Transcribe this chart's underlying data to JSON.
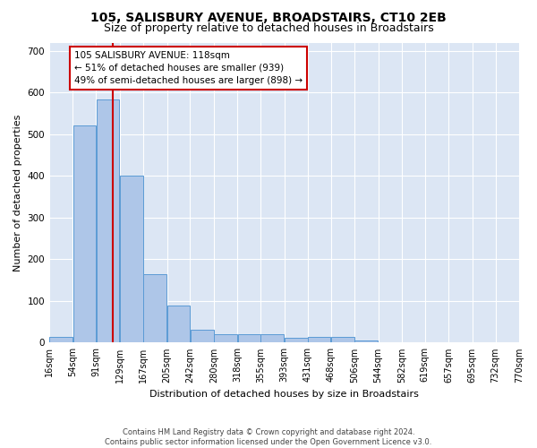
{
  "title": "105, SALISBURY AVENUE, BROADSTAIRS, CT10 2EB",
  "subtitle": "Size of property relative to detached houses in Broadstairs",
  "xlabel": "Distribution of detached houses by size in Broadstairs",
  "ylabel": "Number of detached properties",
  "bar_edges": [
    16,
    54,
    91,
    129,
    167,
    205,
    242,
    280,
    318,
    355,
    393,
    431,
    468,
    506,
    544,
    582,
    619,
    657,
    695,
    732,
    770
  ],
  "bar_heights": [
    14,
    522,
    583,
    401,
    165,
    88,
    32,
    20,
    21,
    20,
    12,
    13,
    13,
    6,
    0,
    0,
    0,
    0,
    0,
    0
  ],
  "bar_color": "#aec6e8",
  "bar_edge_color": "#5b9bd5",
  "property_line_x": 118,
  "property_line_color": "#cc0000",
  "annotation_line1": "105 SALISBURY AVENUE: 118sqm",
  "annotation_line2": "← 51% of detached houses are smaller (939)",
  "annotation_line3": "49% of semi-detached houses are larger (898) →",
  "annotation_box_color": "#cc0000",
  "ylim": [
    0,
    720
  ],
  "yticks": [
    0,
    100,
    200,
    300,
    400,
    500,
    600,
    700
  ],
  "background_color": "#dce6f4",
  "grid_color": "#ffffff",
  "title_fontsize": 10,
  "subtitle_fontsize": 9,
  "axis_label_fontsize": 8,
  "tick_fontsize": 7,
  "footer_text": "Contains HM Land Registry data © Crown copyright and database right 2024.\nContains public sector information licensed under the Open Government Licence v3.0."
}
